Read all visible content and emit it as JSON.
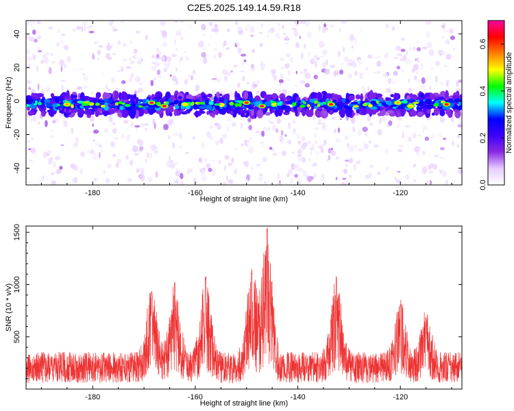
{
  "title": "C2E5.2025.149.14.59.R18",
  "chart_data": [
    {
      "type": "heatmap",
      "xlabel": "Height of straight line (km)",
      "ylabel": "Frequency (Hz)",
      "xlim": [
        -193,
        -108
      ],
      "ylim": [
        -50,
        48
      ],
      "xticks": [
        -180,
        -160,
        -140,
        -120
      ],
      "yticks": [
        -40,
        -20,
        0,
        20,
        40
      ],
      "band_center_hz": -2,
      "colorbar": {
        "label": "Normalized spectral amplitude",
        "range": [
          0,
          0.7
        ],
        "ticks": [
          0.0,
          0.2,
          0.4,
          0.6
        ],
        "colors": [
          "#ffffff",
          "#e6ccff",
          "#8a2be2",
          "#3f00ff",
          "#0000ff",
          "#00ffff",
          "#00ff00",
          "#ffff00",
          "#ff7f00",
          "#ff0000",
          "#ff00a0"
        ]
      },
      "hotspots": [
        {
          "x": -185,
          "y": -2,
          "a": 0.55
        },
        {
          "x": -168.5,
          "y": -1,
          "a": 0.7
        },
        {
          "x": -166,
          "y": -3,
          "a": 0.68
        },
        {
          "x": -162,
          "y": -2,
          "a": 0.5
        },
        {
          "x": -150,
          "y": -1,
          "a": 0.6
        },
        {
          "x": -147,
          "y": -3,
          "a": 0.7
        },
        {
          "x": -133.5,
          "y": -2,
          "a": 0.65
        },
        {
          "x": -120.5,
          "y": -1,
          "a": 0.55
        },
        {
          "x": -118,
          "y": -3,
          "a": 0.5
        },
        {
          "x": -111,
          "y": -2,
          "a": 0.62
        }
      ]
    },
    {
      "type": "line",
      "xlabel": "Height of straight line (km)",
      "ylabel": "SNR (10 * v/v)",
      "xlim": [
        -193,
        -108
      ],
      "ylim": [
        0,
        1560
      ],
      "xticks": [
        -180,
        -160,
        -140,
        -120
      ],
      "yticks": [
        500,
        1000,
        1500
      ],
      "color": "#ee3333",
      "baseline_snr": 230,
      "peaks": [
        {
          "x": -168.5,
          "height": 950
        },
        {
          "x": -164,
          "height": 1050
        },
        {
          "x": -158,
          "height": 1080
        },
        {
          "x": -149,
          "height": 1150
        },
        {
          "x": -146,
          "height": 1560
        },
        {
          "x": -132.5,
          "height": 1080
        },
        {
          "x": -120,
          "height": 820
        },
        {
          "x": -115,
          "height": 700
        }
      ]
    }
  ]
}
